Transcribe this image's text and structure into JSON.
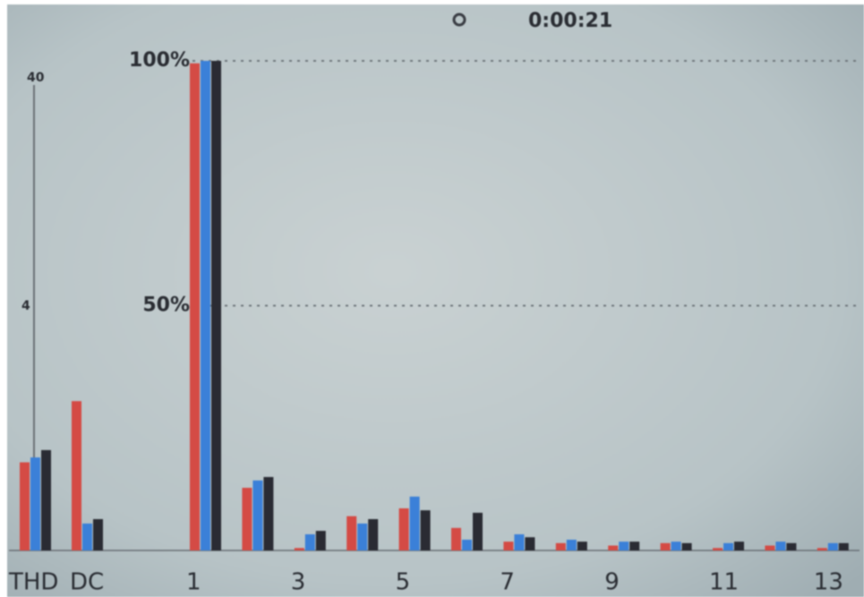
{
  "chart_data": {
    "type": "bar",
    "time": "0:00:21",
    "left_axis_labels": [
      "40",
      "4"
    ],
    "categories": [
      "THD",
      "DC",
      "1",
      null,
      "3",
      null,
      "5",
      null,
      "7",
      null,
      "9",
      null,
      "11",
      null,
      "13"
    ],
    "series": [
      {
        "color": "#d44b45",
        "values": [
          18,
          30.5,
          99.5,
          12.8,
          0.5,
          7,
          8.6,
          4.6,
          1.8,
          1.5,
          1,
          1.5,
          0.5,
          1,
          0.5
        ]
      },
      {
        "color": "#3b80d8",
        "values": [
          19,
          5.5,
          100,
          14.3,
          3.3,
          5.5,
          11,
          2.2,
          3.3,
          2.2,
          1.8,
          1.8,
          1.5,
          1.8,
          1.5
        ]
      },
      {
        "color": "#2a2b33",
        "values": [
          20.5,
          6.4,
          100,
          15,
          4,
          6.4,
          8.2,
          7.7,
          2.7,
          1.8,
          1.8,
          1.5,
          1.8,
          1.5,
          1.5
        ]
      }
    ],
    "ylim": [
      0,
      100
    ],
    "yticks": [
      {
        "value": 50,
        "label": "50%"
      },
      {
        "value": 100,
        "label": "100%"
      }
    ],
    "grid": true
  }
}
